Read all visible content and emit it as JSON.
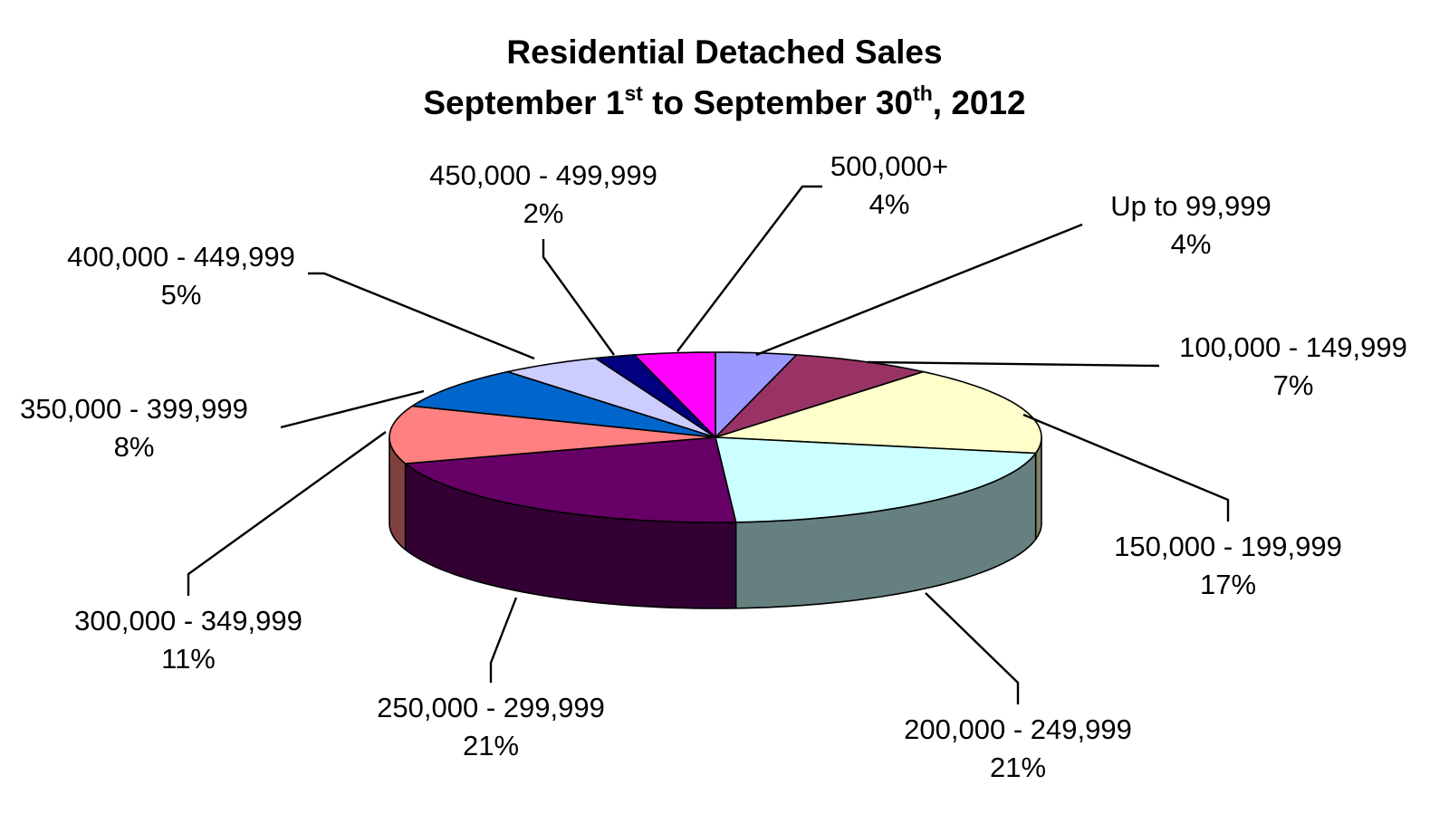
{
  "chart_data": {
    "type": "pie",
    "variant": "3d",
    "title": {
      "line1": "Residential Detached Sales",
      "line2_part1": "September 1",
      "line2_sup1": "st",
      "line2_part2": " to September 30",
      "line2_sup2": "th",
      "line2_part3": ", 2012"
    },
    "slices": [
      {
        "label": "Up to 99,999",
        "value": 4,
        "value_label": "4%",
        "color": "#9999FF"
      },
      {
        "label": "100,000 - 149,999",
        "value": 7,
        "value_label": "7%",
        "color": "#993366"
      },
      {
        "label": "150,000 - 199,999",
        "value": 17,
        "value_label": "17%",
        "color": "#FFFFCC"
      },
      {
        "label": "200,000 - 249,999",
        "value": 21,
        "value_label": "21%",
        "color": "#CCFFFF"
      },
      {
        "label": "250,000 - 299,999",
        "value": 21,
        "value_label": "21%",
        "color": "#660066"
      },
      {
        "label": "300,000 - 349,999",
        "value": 11,
        "value_label": "11%",
        "color": "#FF8080"
      },
      {
        "label": "350,000 - 399,999",
        "value": 8,
        "value_label": "8%",
        "color": "#0066CC"
      },
      {
        "label": "400,000 - 449,999",
        "value": 5,
        "value_label": "5%",
        "color": "#CCCCFF"
      },
      {
        "label": "450,000 - 499,999",
        "value": 2,
        "value_label": "2%",
        "color": "#000080"
      },
      {
        "label": "500,000+",
        "value": 4,
        "value_label": "4%",
        "color": "#FF00FF"
      }
    ]
  }
}
